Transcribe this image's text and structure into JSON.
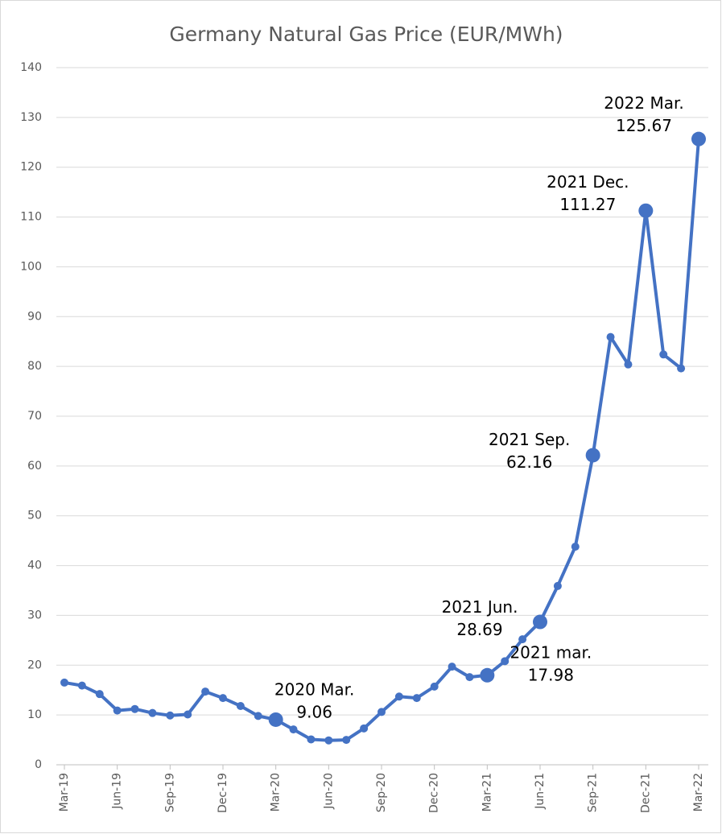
{
  "chart_data": {
    "type": "line",
    "title": "Germany Natural Gas Price (EUR/MWh)",
    "categories": [
      "Mar-19",
      null,
      null,
      "Jun-19",
      null,
      null,
      "Sep-19",
      null,
      null,
      "Dec-19",
      null,
      null,
      "Mar-20",
      null,
      null,
      "Jun-20",
      null,
      null,
      "Sep-20",
      null,
      null,
      "Dec-20",
      null,
      null,
      "Mar-21",
      null,
      null,
      "Jun-21",
      null,
      null,
      "Sep-21",
      null,
      null,
      "Dec-21",
      null,
      null,
      "Mar-22"
    ],
    "series": [
      {
        "name": "Germany Natural Gas Price",
        "color": "#4472c4",
        "values": [
          16.5,
          15.9,
          14.2,
          10.9,
          11.2,
          10.4,
          9.9,
          10.1,
          14.7,
          13.4,
          11.8,
          9.8,
          9.06,
          7.1,
          5.1,
          4.9,
          5.0,
          7.3,
          10.6,
          13.7,
          13.4,
          15.7,
          19.7,
          17.6,
          17.98,
          20.8,
          25.2,
          28.69,
          35.9,
          43.8,
          62.16,
          85.9,
          80.4,
          111.27,
          82.4,
          79.6,
          125.67
        ],
        "point_labels": [
          null,
          null,
          null,
          null,
          null,
          null,
          null,
          null,
          null,
          null,
          null,
          null,
          "2020 Mar.",
          null,
          null,
          null,
          null,
          null,
          null,
          null,
          null,
          null,
          null,
          null,
          "2021 mar.",
          null,
          null,
          "2021 Jun.",
          null,
          null,
          "2021 Sep.",
          null,
          null,
          "2021 Dec.",
          null,
          null,
          "2022 Mar."
        ]
      }
    ],
    "ylim": [
      0,
      140
    ],
    "yticks": [
      0,
      10,
      20,
      30,
      40,
      50,
      60,
      70,
      80,
      90,
      100,
      110,
      120,
      130,
      140
    ],
    "grid": true
  }
}
